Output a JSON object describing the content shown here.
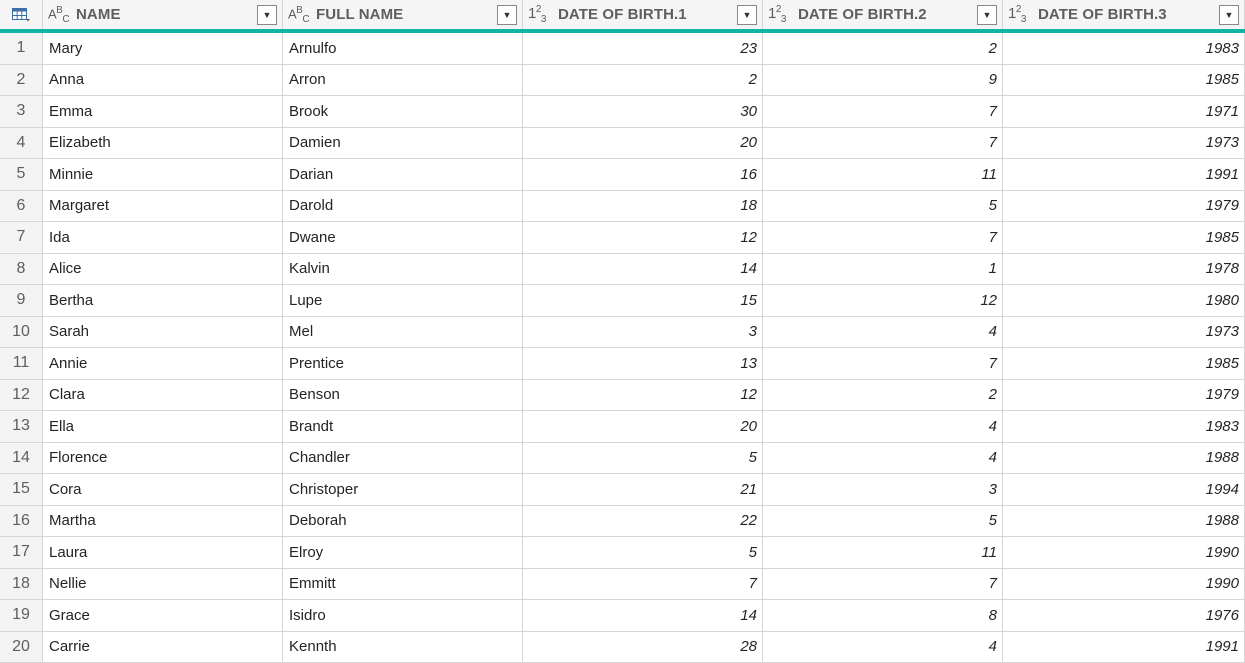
{
  "header": {
    "corner_icon": "table-icon",
    "columns": [
      {
        "type_icon": "text-type-icon",
        "title": "NAME"
      },
      {
        "type_icon": "text-type-icon",
        "title": "FULL NAME"
      },
      {
        "type_icon": "number-type-icon",
        "title": "DATE OF BIRTH.1"
      },
      {
        "type_icon": "number-type-icon",
        "title": "DATE OF BIRTH.2"
      },
      {
        "type_icon": "number-type-icon",
        "title": "DATE OF BIRTH.3"
      }
    ]
  },
  "accent_color": "#13b3a6",
  "rows": [
    {
      "index": "1",
      "name": "Mary",
      "full_name": "Arnulfo",
      "dob1": "23",
      "dob2": "2",
      "dob3": "1983"
    },
    {
      "index": "2",
      "name": "Anna",
      "full_name": "Arron",
      "dob1": "2",
      "dob2": "9",
      "dob3": "1985"
    },
    {
      "index": "3",
      "name": "Emma",
      "full_name": "Brook",
      "dob1": "30",
      "dob2": "7",
      "dob3": "1971"
    },
    {
      "index": "4",
      "name": "Elizabeth",
      "full_name": "Damien",
      "dob1": "20",
      "dob2": "7",
      "dob3": "1973"
    },
    {
      "index": "5",
      "name": "Minnie",
      "full_name": "Darian",
      "dob1": "16",
      "dob2": "11",
      "dob3": "1991"
    },
    {
      "index": "6",
      "name": "Margaret",
      "full_name": "Darold",
      "dob1": "18",
      "dob2": "5",
      "dob3": "1979"
    },
    {
      "index": "7",
      "name": "Ida",
      "full_name": "Dwane",
      "dob1": "12",
      "dob2": "7",
      "dob3": "1985"
    },
    {
      "index": "8",
      "name": "Alice",
      "full_name": "Kalvin",
      "dob1": "14",
      "dob2": "1",
      "dob3": "1978"
    },
    {
      "index": "9",
      "name": "Bertha",
      "full_name": "Lupe",
      "dob1": "15",
      "dob2": "12",
      "dob3": "1980"
    },
    {
      "index": "10",
      "name": "Sarah",
      "full_name": "Mel",
      "dob1": "3",
      "dob2": "4",
      "dob3": "1973"
    },
    {
      "index": "11",
      "name": "Annie",
      "full_name": "Prentice",
      "dob1": "13",
      "dob2": "7",
      "dob3": "1985"
    },
    {
      "index": "12",
      "name": "Clara",
      "full_name": "Benson",
      "dob1": "12",
      "dob2": "2",
      "dob3": "1979"
    },
    {
      "index": "13",
      "name": "Ella",
      "full_name": "Brandt",
      "dob1": "20",
      "dob2": "4",
      "dob3": "1983"
    },
    {
      "index": "14",
      "name": "Florence",
      "full_name": "Chandler",
      "dob1": "5",
      "dob2": "4",
      "dob3": "1988"
    },
    {
      "index": "15",
      "name": "Cora",
      "full_name": "Christoper",
      "dob1": "21",
      "dob2": "3",
      "dob3": "1994"
    },
    {
      "index": "16",
      "name": "Martha",
      "full_name": "Deborah",
      "dob1": "22",
      "dob2": "5",
      "dob3": "1988"
    },
    {
      "index": "17",
      "name": "Laura",
      "full_name": "Elroy",
      "dob1": "5",
      "dob2": "11",
      "dob3": "1990"
    },
    {
      "index": "18",
      "name": "Nellie",
      "full_name": "Emmitt",
      "dob1": "7",
      "dob2": "7",
      "dob3": "1990"
    },
    {
      "index": "19",
      "name": "Grace",
      "full_name": "Isidro",
      "dob1": "14",
      "dob2": "8",
      "dob3": "1976"
    },
    {
      "index": "20",
      "name": "Carrie",
      "full_name": "Kennth",
      "dob1": "28",
      "dob2": "4",
      "dob3": "1991"
    }
  ]
}
